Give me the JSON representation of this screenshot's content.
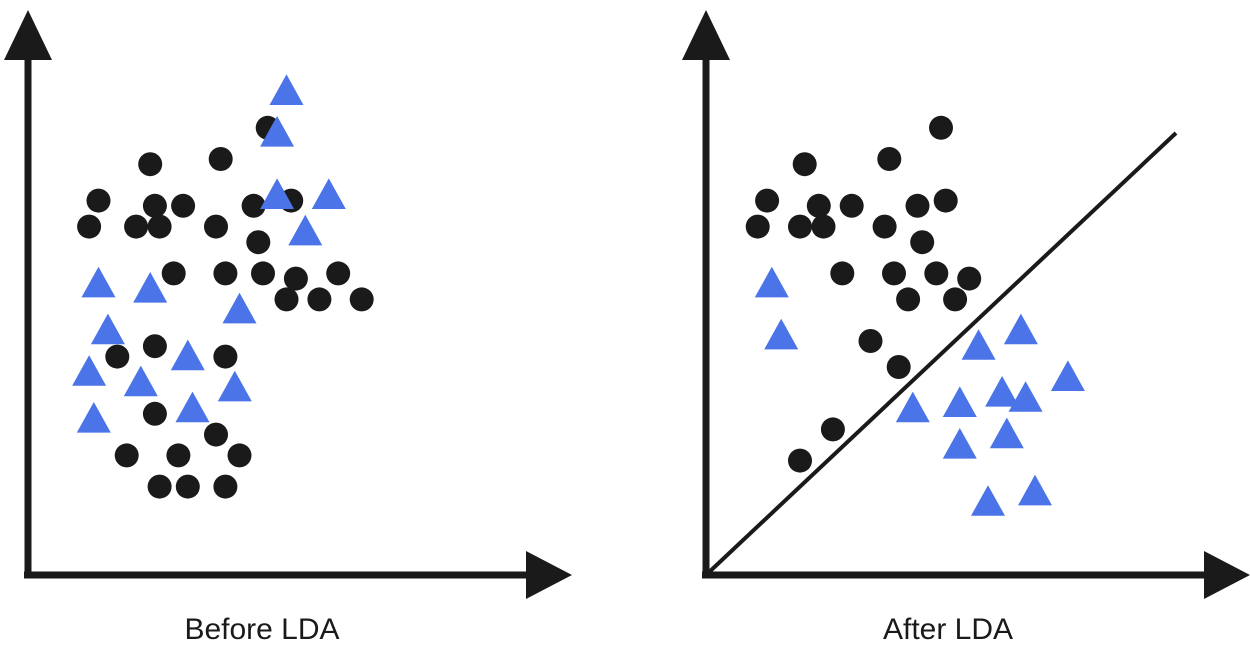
{
  "colors": {
    "ink": "#1a1a1a",
    "circle": "#1a1a1a",
    "triangle": "#4a74e8",
    "background": "#ffffff"
  },
  "legend_shapes": {
    "class_a": "circle",
    "class_b": "triangle"
  },
  "panels": [
    {
      "id": "before",
      "caption": "Before LDA",
      "has_separator": false,
      "chart_data": {
        "type": "scatter",
        "xlim": [
          0,
          100
        ],
        "ylim": [
          0,
          100
        ],
        "series": [
          {
            "shape": "circle",
            "points": [
              [
                26,
                79
              ],
              [
                41,
                80
              ],
              [
                51,
                86
              ],
              [
                15,
                72
              ],
              [
                27,
                71
              ],
              [
                33,
                71
              ],
              [
                48,
                71
              ],
              [
                56,
                72
              ],
              [
                13,
                67
              ],
              [
                23,
                67
              ],
              [
                28,
                67
              ],
              [
                40,
                67
              ],
              [
                49,
                64
              ],
              [
                31,
                58
              ],
              [
                42,
                58
              ],
              [
                50,
                58
              ],
              [
                57,
                57
              ],
              [
                66,
                58
              ],
              [
                55,
                53
              ],
              [
                62,
                53
              ],
              [
                71,
                53
              ],
              [
                27,
                44
              ],
              [
                19,
                42
              ],
              [
                42,
                42
              ],
              [
                27,
                31
              ],
              [
                40,
                27
              ],
              [
                21,
                23
              ],
              [
                32,
                23
              ],
              [
                45,
                23
              ],
              [
                28,
                17
              ],
              [
                34,
                17
              ],
              [
                42,
                17
              ]
            ]
          },
          {
            "shape": "triangle",
            "points": [
              [
                55,
                93
              ],
              [
                53,
                85
              ],
              [
                53,
                73
              ],
              [
                64,
                73
              ],
              [
                59,
                66
              ],
              [
                15,
                56
              ],
              [
                26,
                55
              ],
              [
                45,
                51
              ],
              [
                17,
                47
              ],
              [
                34,
                42
              ],
              [
                13,
                39
              ],
              [
                24,
                37
              ],
              [
                44,
                36
              ],
              [
                35,
                32
              ],
              [
                14,
                30
              ]
            ]
          }
        ]
      }
    },
    {
      "id": "after",
      "caption": "After LDA",
      "has_separator": true,
      "chart_data": {
        "type": "scatter",
        "xlim": [
          0,
          100
        ],
        "ylim": [
          0,
          100
        ],
        "separator_line": [
          [
            0,
            0
          ],
          [
            100,
            85
          ]
        ],
        "series": [
          {
            "shape": "circle",
            "points": [
              [
                21,
                79
              ],
              [
                39,
                80
              ],
              [
                50,
                86
              ],
              [
                13,
                72
              ],
              [
                24,
                71
              ],
              [
                31,
                71
              ],
              [
                45,
                71
              ],
              [
                51,
                72
              ],
              [
                11,
                67
              ],
              [
                20,
                67
              ],
              [
                25,
                67
              ],
              [
                38,
                67
              ],
              [
                46,
                64
              ],
              [
                29,
                58
              ],
              [
                40,
                58
              ],
              [
                49,
                58
              ],
              [
                56,
                57
              ],
              [
                53,
                53
              ],
              [
                43,
                53
              ],
              [
                35,
                45
              ],
              [
                41,
                40
              ],
              [
                27,
                28
              ],
              [
                20,
                22
              ]
            ]
          },
          {
            "shape": "triangle",
            "points": [
              [
                14,
                56
              ],
              [
                16,
                46
              ],
              [
                58,
                44
              ],
              [
                67,
                47
              ],
              [
                77,
                38
              ],
              [
                54,
                33
              ],
              [
                63,
                35
              ],
              [
                68,
                34
              ],
              [
                44,
                32
              ],
              [
                64,
                27
              ],
              [
                54,
                25
              ],
              [
                60,
                14
              ],
              [
                70,
                16
              ]
            ]
          }
        ]
      }
    }
  ]
}
